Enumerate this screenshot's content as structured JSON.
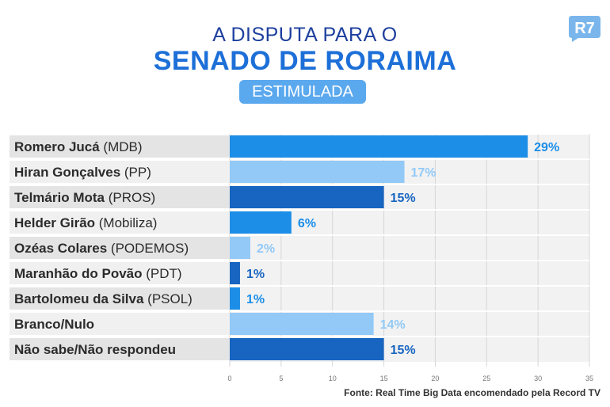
{
  "header": {
    "title_line1": "A DISPUTA PARA O",
    "title_line2": "SENADO DE RORAIMA",
    "pill": "ESTIMULADA",
    "logo_text": "R7"
  },
  "colors": {
    "dark": "#1765c1",
    "medium": "#1c8ee8",
    "light": "#92c9f7",
    "row_band": "#e4e4e4",
    "plot_band": "#f2f2f2"
  },
  "chart_data": {
    "type": "bar",
    "orientation": "horizontal",
    "categories": [
      {
        "name": "Romero Jucá",
        "party": "(MDB)"
      },
      {
        "name": "Hiran Gonçalves",
        "party": "(PP)"
      },
      {
        "name": "Telmário Mota",
        "party": "(PROS)"
      },
      {
        "name": "Helder Girão",
        "party": "(Mobiliza)"
      },
      {
        "name": "Ozéas Colares",
        "party": "(PODEMOS)"
      },
      {
        "name": "Maranhão do Povão",
        "party": "(PDT)"
      },
      {
        "name": "Bartolomeu da Silva",
        "party": "(PSOL)"
      },
      {
        "name": "Branco/Nulo",
        "party": ""
      },
      {
        "name": "Não sabe/Não respondeu",
        "party": ""
      }
    ],
    "values": [
      29,
      17,
      15,
      6,
      2,
      1,
      1,
      14,
      15
    ],
    "value_labels": [
      "29%",
      "17%",
      "15%",
      "6%",
      "2%",
      "1%",
      "1%",
      "14%",
      "15%"
    ],
    "bar_colors": [
      "medium",
      "light",
      "dark",
      "medium",
      "light",
      "dark",
      "medium",
      "light",
      "dark"
    ],
    "xlim": [
      0,
      35
    ],
    "xticks": [
      0,
      5,
      10,
      15,
      20,
      25,
      30,
      35
    ],
    "grid": true
  },
  "footer": {
    "source": "Fonte: Real Time Big Data encomendado pela Record TV"
  }
}
